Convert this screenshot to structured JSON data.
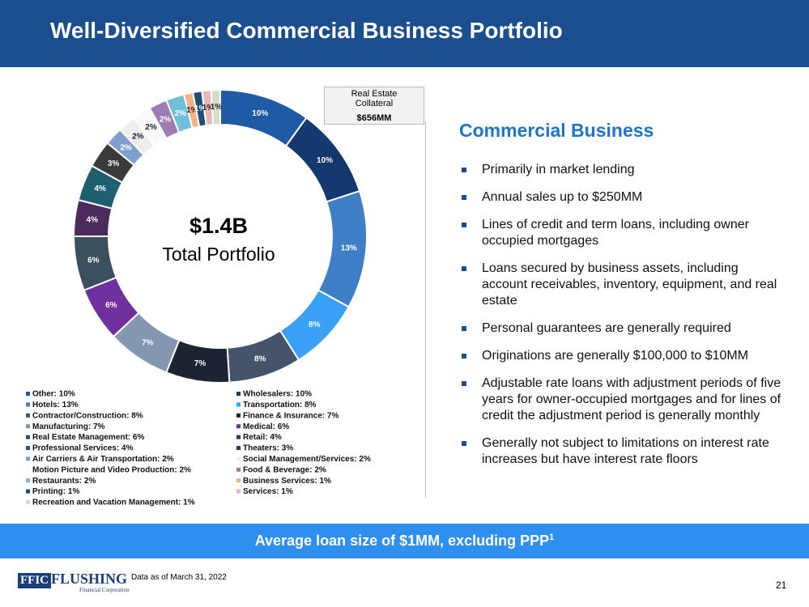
{
  "header": {
    "title": "Well-Diversified Commercial Business Portfolio"
  },
  "chart_data": {
    "type": "donut",
    "center_value": "$1.4B",
    "center_label": "Total Portfolio",
    "categories": [
      "Other: 10%",
      "Wholesalers: 10%",
      "Hotels: 13%",
      "Transportation: 8%",
      "Contractor/Construction: 8%",
      "Finance & Insurance: 7%",
      "Manufacturing: 7%",
      "Medical: 6%",
      "Real Estate Management: 6%",
      "Retail: 4%",
      "Professional Services: 4%",
      "Theaters: 3%",
      "Air Carriers & Air Transportation: 2%",
      "Social Management/Services: 2%",
      "Motion Picture and Video Production: 2%",
      "Food & Beverage: 2%",
      "Restaurants: 2%",
      "Business Services: 1%",
      "Printing: 1%",
      "Services: 1%",
      "Recreation and Vacation Management: 1%"
    ],
    "values": [
      10,
      10,
      13,
      8,
      8,
      7,
      7,
      6,
      6,
      4,
      4,
      3,
      2,
      2,
      2,
      2,
      2,
      1,
      1,
      1,
      1
    ],
    "value_labels": [
      "10%",
      "10%",
      "13%",
      "8%",
      "8%",
      "7%",
      "7%",
      "6%",
      "6%",
      "4%",
      "4%",
      "3%",
      "2%",
      "2%",
      "2%",
      "2%",
      "2%",
      "1%",
      "1%",
      "1%",
      "1%"
    ],
    "colors": [
      "#1f5aa6",
      "#14396e",
      "#3f7fc7",
      "#38a0f5",
      "#44546a",
      "#1b2430",
      "#8497b0",
      "#7030a0",
      "#3b4f5f",
      "#4a2b5c",
      "#1f6070",
      "#3a3a3a",
      "#7f9fcf",
      "#eeeeee",
      "#f6f8fc",
      "#9e7bb5",
      "#6fc0d8",
      "#f4b183",
      "#1f4e79",
      "#e6b9b8",
      "#d6dfc4"
    ]
  },
  "collateral": {
    "label": "Real Estate Collateral",
    "value": "$656MM"
  },
  "section": {
    "heading": "Commercial Business",
    "bullets": [
      "Primarily in market lending",
      "Annual sales up to $250MM",
      "Lines of credit and term loans, including owner occupied mortgages",
      "Loans secured by business assets, including account receivables, inventory, equipment, and real estate",
      "Personal guarantees are generally required",
      "Originations are generally $100,000 to $10MM",
      "Adjustable rate loans with adjustment periods of five years for owner-occupied mortgages and for lines of credit the adjustment period is generally monthly",
      "Generally not subject to limitations on interest rate increases but have interest rate floors"
    ]
  },
  "banner": {
    "text": "Average loan size of $1MM, excluding PPP",
    "footnote_mark": "1"
  },
  "footer": {
    "logo_mark": "FFIC",
    "logo_name": "FLUSHING",
    "logo_sub": "Financial Corporation",
    "note": "Data as of March 31, 2022",
    "page": "21"
  }
}
